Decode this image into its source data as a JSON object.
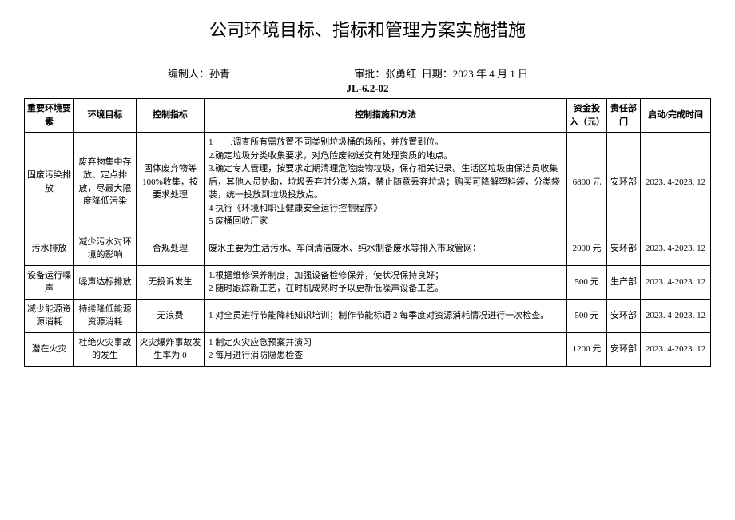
{
  "title": "公司环境目标、指标和管理方案实施措施",
  "meta": {
    "author_label": "编制人：",
    "author": "孙青",
    "approver_label": "审批：",
    "approver": "张勇红",
    "date_label": "日期：",
    "date": "2023 年 4 月 1 日",
    "doc_code": "JL-6.2-02"
  },
  "columns": {
    "factor": "重要环境要素",
    "goal": "环境目标",
    "indicator": "控制指标",
    "measures": "控制措施和方法",
    "cost": "资金投入（元）",
    "dept": "责任部门",
    "time": "启动/完成时间"
  },
  "rows": [
    {
      "factor": "固废污染排放",
      "goal": "废弃物集中存放、定点排放，尽最大限度降低污染",
      "indicator": "固体废弃物等 100%收集，按要求处理",
      "measures": "1　　.调查所有需放置不同类别垃圾桶的场所，并放置到位。\n2.确定垃圾分类收集要求，对危险废物送交有处理资质的地点。\n3.确定专人管理，按要求定期清理危险废物垃圾，保存相关记录。生活区垃圾由保洁员收集后，其他人员协助，垃圾丢弃时分类入箱，禁止随意丢弃垃圾；购买可降解塑料袋，分类袋装，统一投放到垃圾投放点。\n4 执行《环境和职业健康安全运行控制程序》\n5 废桶回收厂家",
      "cost": "6800 元",
      "dept": "安环部",
      "time": "2023. 4-2023. 12"
    },
    {
      "factor": "污水排放",
      "goal": "减少污水对环境的影响",
      "indicator": "合规处理",
      "measures": "废水主要为生活污水、车间清洁废水、纯水制备废水等排入市政管网；",
      "cost": "2000 元",
      "dept": "安环部",
      "time": "2023. 4-2023. 12"
    },
    {
      "factor": "设备运行噪声",
      "goal": "噪声达标排放",
      "indicator": "无投诉发生",
      "measures": "1.根据维修保养制度，加强设备检修保养，使状况保持良好；\n2 随时跟踪新工艺，在时机成熟时予以更新低噪声设备工艺。",
      "cost": "500 元",
      "dept": "生产部",
      "time": "2023. 4-2023. 12"
    },
    {
      "factor": "减少能源资源消耗",
      "goal": "持续降低能源资源消耗",
      "indicator": "无浪费",
      "measures": "1 对全员进行节能降耗知识培训；制作节能标语 2 每季度对资源消耗情况进行一次检查。",
      "cost": "500 元",
      "dept": "安环部",
      "time": "2023. 4-2023. 12"
    },
    {
      "factor": "潜在火灾",
      "goal": "杜绝火灾事故的发生",
      "indicator": "火灾爆炸事故发生率为 0",
      "measures": "1 制定火灾应急预案并演习\n2 每月进行消防隐患检查",
      "cost": "1200 元",
      "dept": "安环部",
      "time": "2023. 4-2023. 12"
    }
  ]
}
